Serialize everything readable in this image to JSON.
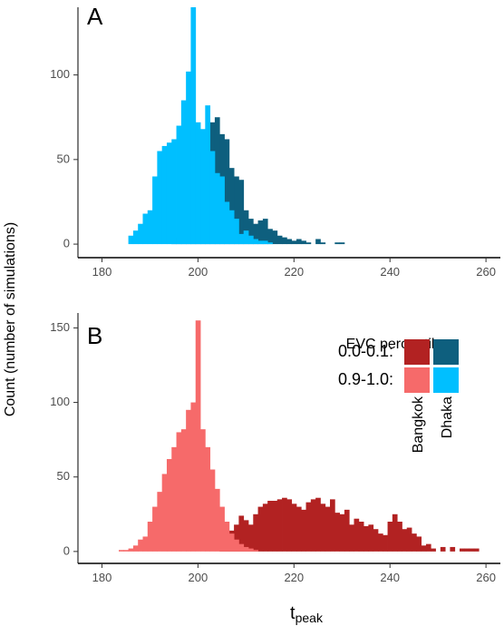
{
  "ylabel": "Count (number of simulations)",
  "xlabel_main": "t",
  "xlabel_sub": "peak",
  "colors": {
    "bangkok_low": "#b22222",
    "dhaka_low": "#0e5f7e",
    "bangkok_high": "#f66a6a",
    "dhaka_high": "#00bfff"
  },
  "legend": {
    "title": "EVC percentile",
    "row_labels": [
      "0.0-0.1:",
      "0.9-1.0:"
    ],
    "col_labels": [
      "Bangkok",
      "Dhaka"
    ]
  },
  "chart_data": [
    {
      "type": "bar",
      "panel_label": "A",
      "bin_width": 1,
      "xlim": [
        175,
        263
      ],
      "ylim": [
        -8,
        140
      ],
      "xticks": [
        180,
        200,
        220,
        240,
        260
      ],
      "yticks": [
        0,
        50,
        100
      ],
      "series": [
        {
          "name": "Dhaka 0.0-0.1",
          "color_key": "dhaka_low",
          "x": [
            195,
            196,
            197,
            198,
            199,
            200,
            201,
            202,
            203,
            204,
            205,
            206,
            207,
            208,
            209,
            210,
            211,
            212,
            213,
            214,
            215,
            216,
            217,
            218,
            219,
            220,
            221,
            222,
            223,
            224,
            225,
            226,
            227,
            228,
            229,
            230
          ],
          "values": [
            2,
            4,
            8,
            12,
            30,
            40,
            55,
            60,
            72,
            75,
            65,
            62,
            45,
            40,
            38,
            20,
            15,
            12,
            14,
            15,
            9,
            8,
            5,
            4,
            3,
            2,
            3,
            2,
            1,
            0,
            3,
            1,
            0,
            0,
            1,
            1
          ]
        },
        {
          "name": "Dhaka 0.9-1.0",
          "color_key": "dhaka_high",
          "x": [
            186,
            187,
            188,
            189,
            190,
            191,
            192,
            193,
            194,
            195,
            196,
            197,
            198,
            199,
            200,
            201,
            202,
            203,
            204,
            205,
            206,
            207,
            208,
            209,
            210,
            211,
            212,
            213,
            214,
            215
          ],
          "values": [
            5,
            8,
            12,
            18,
            20,
            40,
            55,
            58,
            60,
            62,
            70,
            85,
            102,
            140,
            72,
            68,
            82,
            55,
            42,
            40,
            25,
            20,
            15,
            6,
            8,
            5,
            3,
            2,
            2,
            1
          ]
        }
      ]
    },
    {
      "type": "bar",
      "panel_label": "B",
      "bin_width": 1,
      "xlim": [
        175,
        263
      ],
      "ylim": [
        -8,
        160
      ],
      "xticks": [
        180,
        200,
        220,
        240,
        260
      ],
      "yticks": [
        0,
        50,
        100,
        150
      ],
      "series": [
        {
          "name": "Bangkok 0.0-0.1",
          "color_key": "bangkok_low",
          "x": [
            205,
            206,
            207,
            208,
            209,
            210,
            211,
            212,
            213,
            214,
            215,
            216,
            217,
            218,
            219,
            220,
            221,
            222,
            223,
            224,
            225,
            226,
            227,
            228,
            229,
            230,
            231,
            232,
            233,
            234,
            235,
            236,
            237,
            238,
            239,
            240,
            241,
            242,
            243,
            244,
            245,
            246,
            247,
            248,
            249,
            250,
            251,
            252,
            253,
            254,
            255,
            256,
            257,
            258
          ],
          "values": [
            5,
            10,
            14,
            18,
            24,
            21,
            18,
            25,
            30,
            32,
            34,
            34,
            35,
            36,
            35,
            32,
            30,
            28,
            33,
            35,
            36,
            32,
            30,
            35,
            26,
            25,
            28,
            18,
            22,
            20,
            17,
            18,
            15,
            12,
            11,
            20,
            25,
            20,
            15,
            16,
            12,
            10,
            4,
            5,
            2,
            0,
            3,
            0,
            3,
            0,
            2,
            2,
            2,
            2
          ]
        },
        {
          "name": "Bangkok 0.9-1.0",
          "color_key": "bangkok_high",
          "x": [
            184,
            185,
            186,
            187,
            188,
            189,
            190,
            191,
            192,
            193,
            194,
            195,
            196,
            197,
            198,
            199,
            200,
            201,
            202,
            203,
            204,
            205,
            206,
            207,
            208,
            209,
            210,
            211,
            212
          ],
          "values": [
            1,
            1,
            2,
            4,
            8,
            10,
            20,
            30,
            40,
            52,
            62,
            70,
            80,
            82,
            95,
            100,
            155,
            82,
            70,
            55,
            42,
            30,
            20,
            12,
            8,
            5,
            3,
            2,
            1
          ]
        }
      ]
    }
  ]
}
